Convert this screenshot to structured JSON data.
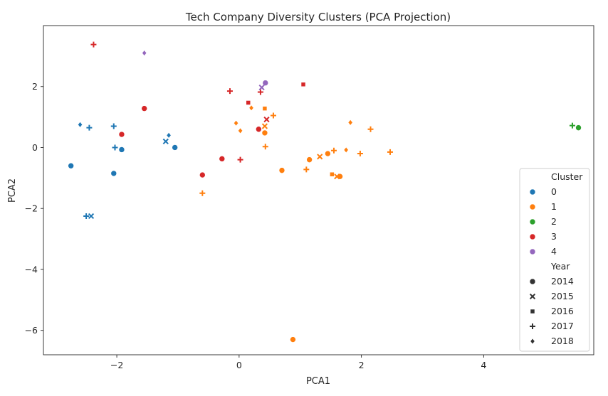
{
  "chart_data": {
    "type": "scatter",
    "title": "Tech Company Diversity Clusters (PCA Projection)",
    "xlabel": "PCA1",
    "ylabel": "PCA2",
    "xlim": [
      -3.2,
      5.8
    ],
    "ylim": [
      -6.8,
      4.0
    ],
    "xticks": [
      -2,
      0,
      2,
      4
    ],
    "yticks": [
      -6,
      -4,
      -2,
      0,
      2
    ],
    "grid": false,
    "legend_placement": "lower-right",
    "legend": {
      "hue_title": "Cluster",
      "style_title": "Year",
      "clusters": [
        {
          "id": 0,
          "label": "0",
          "color": "#1f77b4"
        },
        {
          "id": 1,
          "label": "1",
          "color": "#ff7f0e"
        },
        {
          "id": 2,
          "label": "2",
          "color": "#2ca02c"
        },
        {
          "id": 3,
          "label": "3",
          "color": "#d62728"
        },
        {
          "id": 4,
          "label": "4",
          "color": "#9467bd"
        }
      ],
      "years": [
        {
          "label": "2014",
          "marker": "circle"
        },
        {
          "label": "2015",
          "marker": "x"
        },
        {
          "label": "2016",
          "marker": "square"
        },
        {
          "label": "2017",
          "marker": "plus"
        },
        {
          "label": "2018",
          "marker": "diamond"
        }
      ]
    },
    "points": [
      {
        "x": -2.75,
        "y": -0.6,
        "cluster": 0,
        "year": "2014"
      },
      {
        "x": -2.05,
        "y": -0.85,
        "cluster": 0,
        "year": "2014"
      },
      {
        "x": -1.92,
        "y": -0.07,
        "cluster": 0,
        "year": "2014"
      },
      {
        "x": -1.05,
        "y": 0.0,
        "cluster": 0,
        "year": "2014"
      },
      {
        "x": -1.2,
        "y": 0.2,
        "cluster": 0,
        "year": "2015"
      },
      {
        "x": -2.42,
        "y": -2.25,
        "cluster": 0,
        "year": "2015"
      },
      {
        "x": -2.5,
        "y": -2.25,
        "cluster": 0,
        "year": "2017"
      },
      {
        "x": -2.45,
        "y": 0.65,
        "cluster": 0,
        "year": "2017"
      },
      {
        "x": -2.05,
        "y": 0.7,
        "cluster": 0,
        "year": "2017"
      },
      {
        "x": -2.03,
        "y": 0.0,
        "cluster": 0,
        "year": "2017"
      },
      {
        "x": -2.6,
        "y": 0.75,
        "cluster": 0,
        "year": "2018"
      },
      {
        "x": -1.15,
        "y": 0.4,
        "cluster": 0,
        "year": "2018"
      },
      {
        "x": 0.42,
        "y": 0.48,
        "cluster": 1,
        "year": "2014"
      },
      {
        "x": 0.7,
        "y": -0.75,
        "cluster": 1,
        "year": "2014"
      },
      {
        "x": 1.15,
        "y": -0.4,
        "cluster": 1,
        "year": "2014"
      },
      {
        "x": 1.45,
        "y": -0.2,
        "cluster": 1,
        "year": "2014"
      },
      {
        "x": 1.65,
        "y": -0.95,
        "cluster": 1,
        "year": "2014"
      },
      {
        "x": 0.88,
        "y": -6.3,
        "cluster": 1,
        "year": "2014"
      },
      {
        "x": 0.42,
        "y": 0.7,
        "cluster": 1,
        "year": "2015"
      },
      {
        "x": 1.32,
        "y": -0.3,
        "cluster": 1,
        "year": "2015"
      },
      {
        "x": 1.6,
        "y": -0.95,
        "cluster": 1,
        "year": "2015"
      },
      {
        "x": 0.42,
        "y": 1.28,
        "cluster": 1,
        "year": "2016"
      },
      {
        "x": 1.52,
        "y": -0.88,
        "cluster": 1,
        "year": "2016"
      },
      {
        "x": -0.6,
        "y": -1.5,
        "cluster": 1,
        "year": "2017"
      },
      {
        "x": 0.43,
        "y": 0.03,
        "cluster": 1,
        "year": "2017"
      },
      {
        "x": 0.56,
        "y": 1.05,
        "cluster": 1,
        "year": "2017"
      },
      {
        "x": 1.1,
        "y": -0.72,
        "cluster": 1,
        "year": "2017"
      },
      {
        "x": 1.55,
        "y": -0.1,
        "cluster": 1,
        "year": "2017"
      },
      {
        "x": 1.98,
        "y": -0.2,
        "cluster": 1,
        "year": "2017"
      },
      {
        "x": 2.15,
        "y": 0.6,
        "cluster": 1,
        "year": "2017"
      },
      {
        "x": 2.47,
        "y": -0.15,
        "cluster": 1,
        "year": "2017"
      },
      {
        "x": -0.05,
        "y": 0.8,
        "cluster": 1,
        "year": "2018"
      },
      {
        "x": 0.02,
        "y": 0.55,
        "cluster": 1,
        "year": "2018"
      },
      {
        "x": 0.2,
        "y": 1.3,
        "cluster": 1,
        "year": "2018"
      },
      {
        "x": 1.75,
        "y": -0.08,
        "cluster": 1,
        "year": "2018"
      },
      {
        "x": 1.82,
        "y": 0.82,
        "cluster": 1,
        "year": "2018"
      },
      {
        "x": 5.55,
        "y": 0.65,
        "cluster": 2,
        "year": "2014"
      },
      {
        "x": 5.45,
        "y": 0.72,
        "cluster": 2,
        "year": "2017"
      },
      {
        "x": -1.55,
        "y": 1.28,
        "cluster": 3,
        "year": "2014"
      },
      {
        "x": -1.92,
        "y": 0.43,
        "cluster": 3,
        "year": "2014"
      },
      {
        "x": -0.28,
        "y": -0.37,
        "cluster": 3,
        "year": "2014"
      },
      {
        "x": -0.6,
        "y": -0.9,
        "cluster": 3,
        "year": "2014"
      },
      {
        "x": 0.32,
        "y": 0.6,
        "cluster": 3,
        "year": "2014"
      },
      {
        "x": 0.45,
        "y": 0.92,
        "cluster": 3,
        "year": "2015"
      },
      {
        "x": 0.15,
        "y": 1.47,
        "cluster": 3,
        "year": "2016"
      },
      {
        "x": 1.05,
        "y": 2.07,
        "cluster": 3,
        "year": "2016"
      },
      {
        "x": -2.38,
        "y": 3.38,
        "cluster": 3,
        "year": "2017"
      },
      {
        "x": -0.15,
        "y": 1.85,
        "cluster": 3,
        "year": "2017"
      },
      {
        "x": 0.35,
        "y": 1.82,
        "cluster": 3,
        "year": "2017"
      },
      {
        "x": 0.02,
        "y": -0.4,
        "cluster": 3,
        "year": "2017"
      },
      {
        "x": 0.43,
        "y": 2.12,
        "cluster": 4,
        "year": "2014"
      },
      {
        "x": 0.37,
        "y": 1.97,
        "cluster": 4,
        "year": "2015"
      },
      {
        "x": -1.55,
        "y": 3.1,
        "cluster": 4,
        "year": "2018"
      }
    ]
  }
}
